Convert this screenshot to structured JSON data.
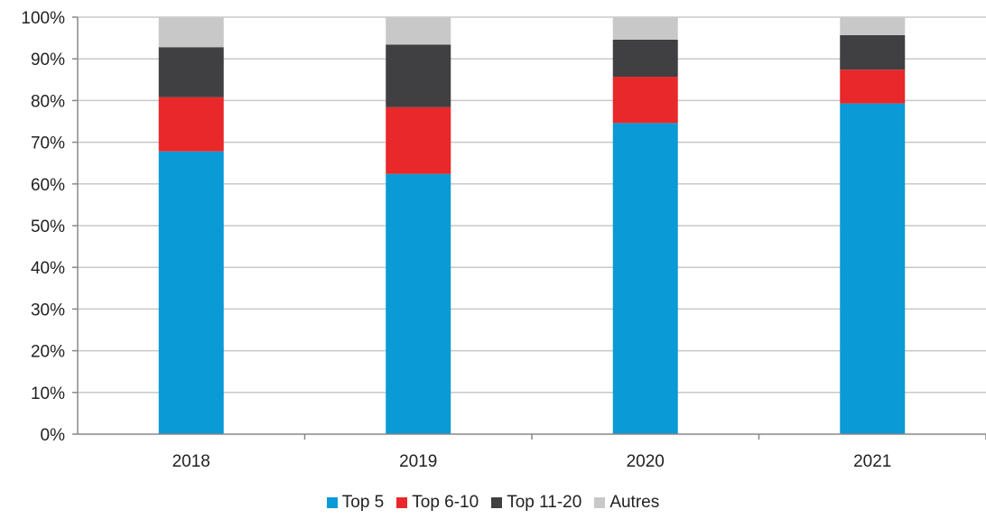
{
  "chart_data": {
    "type": "bar",
    "stacked": true,
    "categories": [
      "2018",
      "2019",
      "2020",
      "2021"
    ],
    "series": [
      {
        "name": "Top 5",
        "color": "#0A9AD6",
        "values": [
          67.8,
          62.4,
          74.6,
          79.3
        ]
      },
      {
        "name": "Top 6-10",
        "color": "#E8282A",
        "values": [
          13.0,
          16.0,
          11.1,
          8.1
        ]
      },
      {
        "name": "Top 11-20",
        "color": "#404042",
        "values": [
          12.0,
          15.0,
          8.9,
          8.3
        ]
      },
      {
        "name": "Autres",
        "color": "#C8C8C8",
        "values": [
          7.2,
          6.6,
          5.4,
          4.3
        ]
      }
    ],
    "ylim": [
      0,
      100
    ],
    "yticks": [
      "0%",
      "10%",
      "20%",
      "30%",
      "40%",
      "50%",
      "60%",
      "70%",
      "80%",
      "90%",
      "100%"
    ],
    "grid": true,
    "legend": "bottom"
  }
}
